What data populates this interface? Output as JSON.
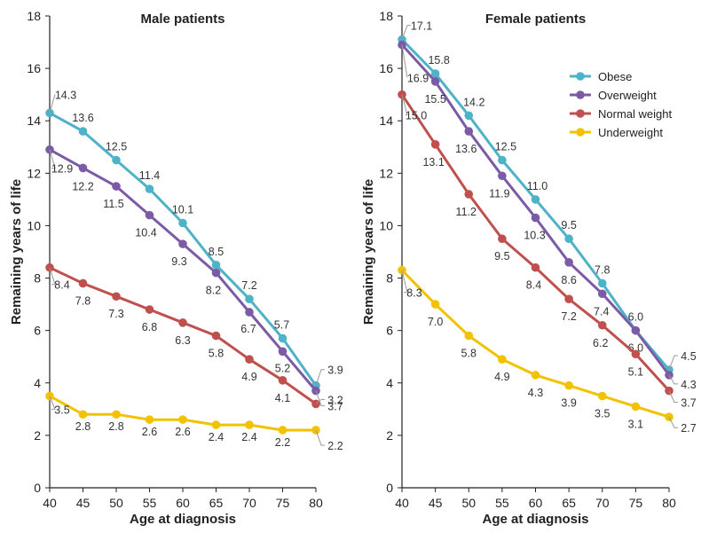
{
  "chart_data": [
    {
      "type": "line",
      "title": "Male patients",
      "xlabel": "Age at diagnosis",
      "ylabel": "Remaining years of life",
      "x": [
        40,
        45,
        50,
        55,
        60,
        65,
        70,
        75,
        80
      ],
      "xlim": [
        40,
        80
      ],
      "ylim": [
        0,
        18
      ],
      "yticks": [
        "0",
        "2",
        "4",
        "6",
        "8",
        "10",
        "12",
        "14",
        "16",
        "18"
      ],
      "xticks": [
        "40",
        "45",
        "50",
        "55",
        "60",
        "65",
        "70",
        "75",
        "80"
      ],
      "grid": false,
      "series": [
        {
          "name": "Obese",
          "values": [
            14.3,
            13.6,
            12.5,
            11.4,
            10.1,
            8.5,
            7.2,
            5.7,
            3.9
          ]
        },
        {
          "name": "Overweight",
          "values": [
            12.9,
            12.2,
            11.5,
            10.4,
            9.3,
            8.2,
            6.7,
            5.2,
            3.7
          ]
        },
        {
          "name": "Normal weight",
          "values": [
            8.4,
            7.8,
            7.3,
            6.8,
            6.3,
            5.8,
            4.9,
            4.1,
            3.2
          ]
        },
        {
          "name": "Underweight",
          "values": [
            3.5,
            2.8,
            2.8,
            2.6,
            2.6,
            2.4,
            2.4,
            2.2,
            2.2
          ]
        }
      ],
      "labels": [
        [
          "14.3",
          "13.6",
          "12.5",
          "11.4",
          "10.1",
          "8.5",
          "7.2",
          "5.7",
          "3.9"
        ],
        [
          "12.9",
          "12.2",
          "11.5",
          "10.4",
          "9.3",
          "8.2",
          "6.7",
          "5.2",
          "3.7"
        ],
        [
          "8.4",
          "7.8",
          "7.3",
          "6.8",
          "6.3",
          "5.8",
          "4.9",
          "4.1",
          "3.2"
        ],
        [
          "3.5",
          "2.8",
          "2.8",
          "2.6",
          "2.6",
          "2.4",
          "2.4",
          "2.2",
          "2.2"
        ]
      ]
    },
    {
      "type": "line",
      "title": "Female patients",
      "xlabel": "Age at diagnosis",
      "ylabel": "Remaining years of life",
      "x": [
        40,
        45,
        50,
        55,
        60,
        65,
        70,
        75,
        80
      ],
      "xlim": [
        40,
        80
      ],
      "ylim": [
        0,
        18
      ],
      "yticks": [
        "0",
        "2",
        "4",
        "6",
        "8",
        "10",
        "12",
        "14",
        "16",
        "18"
      ],
      "xticks": [
        "40",
        "45",
        "50",
        "55",
        "60",
        "65",
        "70",
        "75",
        "80"
      ],
      "grid": false,
      "legend_position": "top-right",
      "series": [
        {
          "name": "Obese",
          "values": [
            17.1,
            15.8,
            14.2,
            12.5,
            11.0,
            9.5,
            7.8,
            6.0,
            4.5
          ]
        },
        {
          "name": "Overweight",
          "values": [
            16.9,
            15.5,
            13.6,
            11.9,
            10.3,
            8.6,
            7.4,
            6.0,
            4.3
          ]
        },
        {
          "name": "Normal weight",
          "values": [
            15.0,
            13.1,
            11.2,
            9.5,
            8.4,
            7.2,
            6.2,
            5.1,
            3.7
          ]
        },
        {
          "name": "Underweight",
          "values": [
            8.3,
            7.0,
            5.8,
            4.9,
            4.3,
            3.9,
            3.5,
            3.1,
            2.7
          ]
        }
      ],
      "labels": [
        [
          "17.1",
          "15.8",
          "14.2",
          "12.5",
          "11.0",
          "9.5",
          "7.8",
          "6.0",
          "4.5"
        ],
        [
          "16.9",
          "15.5",
          "13.6",
          "11.9",
          "10.3",
          "8.6",
          "7.4",
          "6.0",
          "4.3"
        ],
        [
          "15.0",
          "13.1",
          "11.2",
          "9.5",
          "8.4",
          "7.2",
          "6.2",
          "5.1",
          "3.7"
        ],
        [
          "8.3",
          "7.0",
          "5.8",
          "4.9",
          "4.3",
          "3.9",
          "3.5",
          "3.1",
          "2.7"
        ]
      ]
    }
  ],
  "colors": {
    "obese": "#4fb3c8",
    "overweight": "#7b5aa6",
    "normal_weight": "#c0504d",
    "underweight": "#f2c200"
  },
  "legend": [
    "Obese",
    "Overweight",
    "Normal weight",
    "Underweight"
  ]
}
